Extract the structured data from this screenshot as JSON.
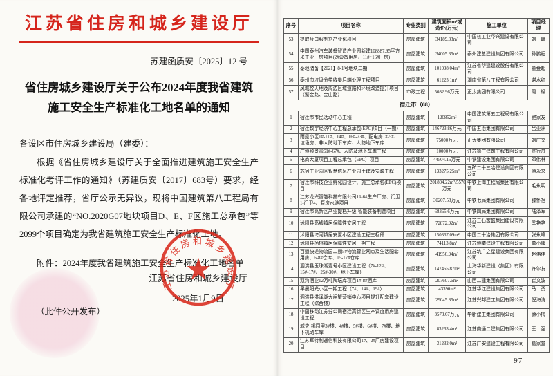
{
  "left_page": {
    "agency_title": "江苏省住房和城乡建设厅",
    "doc_number": "苏建函质安〔2025〕12 号",
    "notice_title": "省住房城乡建设厅关于公布2024年度我省建筑施工安全生产标准化工地名单的通知",
    "salutation": "各设区市住房城乡建设局（建委）：",
    "body": "根据《省住房城乡建设厅关于全面推进建筑施工安全生产标准化考评工作的通知》（苏建质安〔2017〕683号）要求，经各地评定推荐，省厅公示无异议，现将中国建筑第八工程局有限公司承建的“NO.2020G07地块项目D、E、F区施工总承包”等2099个项目确定为我省建筑施工安全生产标准化工地。",
    "attachment": "附件：2024年度我省建筑施工安全生产标准化工地名单",
    "signer": "江苏省住房和城乡建设厅",
    "sign_date": "2025年1月9日",
    "public_note": "（此件公开发布）",
    "seal_text": "江苏省住房和城乡建设厅",
    "accent_red": "#d5251c"
  },
  "table_page": {
    "headers": [
      "序号",
      "项目名称",
      "专业类别",
      "建筑面积m²或造价(万元)",
      "施工单位",
      "项目经理"
    ],
    "section_header": "宿迁市（68）",
    "page_number": "— 97 —",
    "rows_top": [
      {
        "n": "53",
        "name": "提取及口服制剂产业化项目",
        "cat": "房屋建筑",
        "area": "34189.33m²",
        "co": "中国核工业华兴建设有限公司",
        "mgr": "刘　峰"
      },
      {
        "n": "54",
        "name": "中国泰州汽车装备智造产业园新建108887.95平方米工业厂房项目(2#设备用房、11#~16#厂房)",
        "cat": "房屋建筑",
        "area": "34005.35m²",
        "co": "泰州建总建设集团有限公司",
        "mgr": "孙鹏程"
      },
      {
        "n": "55",
        "name": "泰地储备【2021】8-1号地块二期",
        "cat": "房屋建筑",
        "area": "101098.04m²",
        "co": "江苏省华建建设股份有限公司",
        "mgr": "董金超"
      },
      {
        "n": "56",
        "name": "泰州市垃圾分类收集后端处理工程项目",
        "cat": "房屋建筑",
        "area": "61225.1m²",
        "co": "湖南省第八工程有限公司",
        "mgr": "谌水红"
      },
      {
        "n": "57",
        "name": "凤城悦天地及周边区域道路和环境改造提升项目（繁金路、金山路）",
        "cat": "市政工程",
        "area": "5082.96万元",
        "co": "正太集团有限公司",
        "mgr": "周　斌"
      }
    ],
    "rows_suqian": [
      {
        "n": "1",
        "name": "宿迁市市民活动中心工程",
        "cat": "房屋建筑",
        "area": "120852m²",
        "co": "中国建筑第五工程局有限公司",
        "mgr": "鲍家友"
      },
      {
        "n": "2",
        "name": "宿迁数字经济中心工程总承包(EPC)项目（一期）",
        "cat": "房屋建筑",
        "area": "146723.86万元",
        "co": "中国五冶集团有限公司",
        "mgr": "吕亚洲"
      },
      {
        "n": "3",
        "name": "雨露小区1#-11#、14#、16#-23#、配电房1#-5#、垃圾房、非人防地下车库、人防地下车库",
        "cat": "房屋建筑",
        "area": "75000万元",
        "co": "正太集团有限公司",
        "mgr": "刘广文"
      },
      {
        "n": "4",
        "name": "广博颐景湾61#-67#、人防及地下车库工程",
        "cat": "房屋建筑",
        "area": "10000万元",
        "co": "江苏德广建筑工程有限公司",
        "mgr": "佟行舟"
      },
      {
        "n": "5",
        "name": "电商大厦项目工程总承包（EPC）项目",
        "cat": "房屋建筑",
        "area": "44504.15万元",
        "co": "中铁建设集团有限公司",
        "mgr": "邓伟林"
      },
      {
        "n": "6",
        "name": "苏宿工业园区智慧信息产业园土建及安装工程",
        "cat": "房屋建筑",
        "area": "133275.25m²",
        "co": "五矿二十三冶建设集团有限公司",
        "mgr": "傅永来"
      },
      {
        "n": "7",
        "name": "宿迁市科技企业孵化园设计、施工总承包(EPC)项目",
        "cat": "房屋建筑",
        "area": "201804.22m²/55702万元",
        "co": "中铁上海工程局集团有限公司",
        "mgr": "毛永明"
      },
      {
        "n": "8",
        "name": "江苏龙兴智能科技有限公司1#-6#生产厂房、门卫1-门卫4、泵房水池项目",
        "cat": "房屋建筑",
        "area": "30207.58万元",
        "co": "中铁七局集团有限公司",
        "mgr": "滕怀祖"
      },
      {
        "n": "9",
        "name": "宿迁市高新区产业提档升级-智能装备制造项目",
        "cat": "房屋建筑",
        "area": "68365.6万元",
        "co": "中铁四局集团有限公司",
        "mgr": "陆泽军"
      },
      {
        "n": "10",
        "name": "沭阳县高墟镇居保障性安居工程",
        "cat": "房屋建筑",
        "area": "72872.92m²",
        "co": "江苏三石宏盛集团建设有限公司",
        "mgr": "季艳艳"
      },
      {
        "n": "11",
        "name": "沭阳县垮河镇居安置小区建设工程三标段",
        "cat": "房屋建筑",
        "area": "150367.09m²",
        "co": "中国二十冶集团有限公司",
        "mgr": "张永峰"
      },
      {
        "n": "12",
        "name": "沭阳县杨桃镇居保障性安居一期工程",
        "cat": "房屋建筑",
        "area": "74113.8m²",
        "co": "江苏博曦建设工程有限公司",
        "mgr": "单小康"
      },
      {
        "n": "13",
        "name": "百盟快递物流园二期5#物流营业网点及生活配套用房、6-8#仓库、15-17#仓库",
        "cat": "房屋建筑",
        "area": "41956.94m²",
        "co": "江苏筑广之星建设集团有限公司",
        "mgr": "赵伟伟"
      },
      {
        "n": "14",
        "name": "泗洪县玉珠湖壹号小区建设工程（7#-12#、15#-17#、25#-30#、地下车库）",
        "cat": "房屋建筑",
        "area": "147465.87m²",
        "co": "上海华新建设（集团）有限公司",
        "mgr": "许尔友"
      },
      {
        "n": "15",
        "name": "双沟酒业12万吨陶坛库项目1#-8#酒库",
        "cat": "房屋建筑",
        "area": "207607.6m²",
        "co": "山西二建集团有限公司",
        "mgr": "崔文波"
      },
      {
        "n": "16",
        "name": "早晨阳光小区一期工程（7#、14#、19#）",
        "cat": "房屋建筑",
        "area": "43390m²",
        "co": "江苏华江建设集团有限公司",
        "mgr": "马　勇"
      },
      {
        "n": "17",
        "name": "泗洪县洪泽湖大闸蟹营销中心项目提升配套建设工程（综合楼）",
        "cat": "房屋建筑",
        "area": "29045.85m²",
        "co": "江苏兴邦建工集团有限公司",
        "mgr": "倪海涛"
      },
      {
        "n": "18",
        "name": "中国移动江苏分公司宿迁高新区生产调度用房建设工程",
        "cat": "房屋建筑",
        "area": "3573.67万元",
        "co": "华新建工集团有限公司",
        "mgr": "徐小梅"
      },
      {
        "n": "19",
        "name": "城央·桃园里3#楼、4#楼、5#楼、6#楼、7#楼、地下机动车库",
        "cat": "房屋建筑",
        "area": "83263.4m²",
        "co": "江苏南通二建集团有限公司",
        "mgr": "王　强"
      },
      {
        "n": "20",
        "name": "江苏军特利通信科技有限公司1#、2#厂房建设项目",
        "cat": "房屋建筑",
        "area": "31232.0m²",
        "co": "江苏广安建设工程有限公司",
        "mgr": "葛家堂"
      }
    ]
  }
}
